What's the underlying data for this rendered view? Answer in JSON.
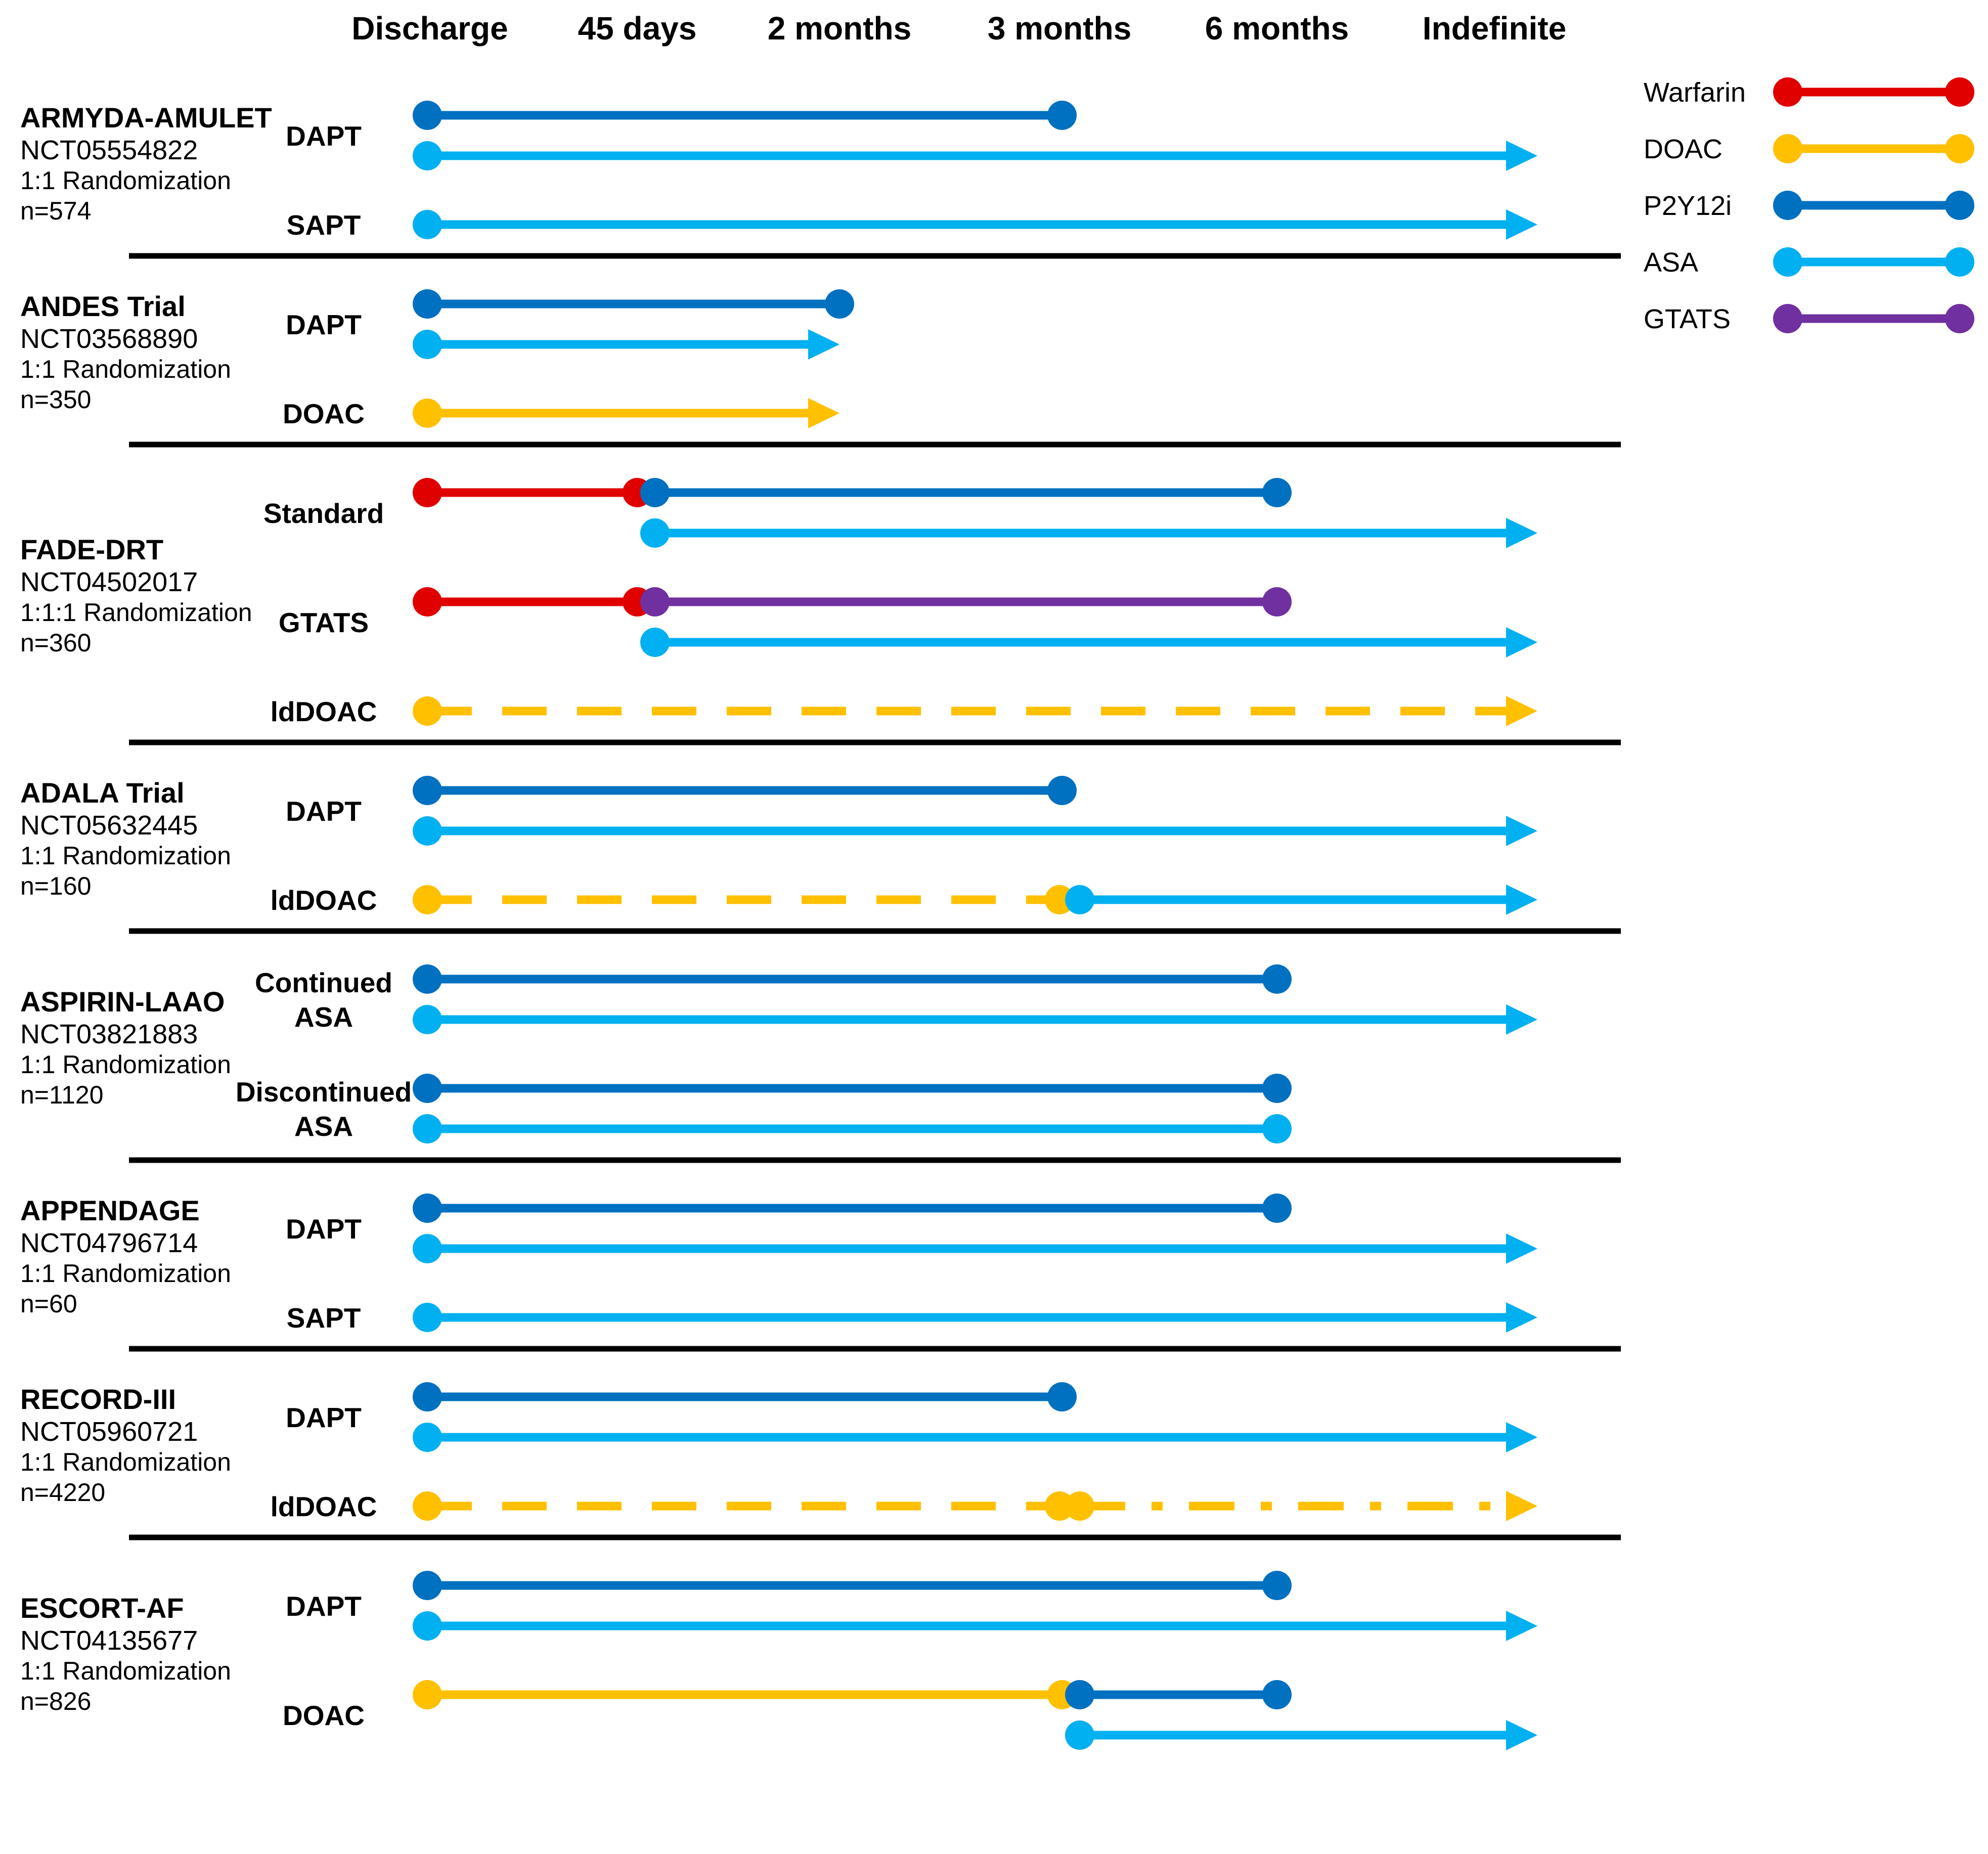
{
  "colors": {
    "warfarin": "#e00000",
    "doac": "#ffc000",
    "p2y12i": "#0070c0",
    "asa": "#00b0f0",
    "gtats": "#7030a0",
    "divider": "#000000"
  },
  "timeline": {
    "points": [
      {
        "key": "discharge",
        "label": "Discharge"
      },
      {
        "key": "d45",
        "label": "45 days"
      },
      {
        "key": "m2",
        "label": "2 months"
      },
      {
        "key": "m3",
        "label": "3 months"
      },
      {
        "key": "m6",
        "label": "6 months"
      },
      {
        "key": "indef",
        "label": "Indefinite"
      }
    ]
  },
  "legend": [
    {
      "key": "warfarin",
      "label": "Warfarin"
    },
    {
      "key": "doac",
      "label": "DOAC"
    },
    {
      "key": "p2y12i",
      "label": "P2Y12i"
    },
    {
      "key": "asa",
      "label": "ASA"
    },
    {
      "key": "gtats",
      "label": "GTATS"
    }
  ],
  "trials": [
    {
      "name": "ARMYDA-AMULET",
      "nct": "NCT05554822",
      "randomization": "1:1 Randomization",
      "n": "n=574",
      "arms": [
        {
          "label": [
            "DAPT"
          ],
          "lines": [
            {
              "drug": "p2y12i",
              "from": "discharge",
              "to": "m3",
              "end": "dot"
            },
            {
              "drug": "asa",
              "from": "discharge",
              "to": "indef",
              "end": "arrow"
            }
          ]
        },
        {
          "label": [
            "SAPT"
          ],
          "lines": [
            {
              "drug": "asa",
              "from": "discharge",
              "to": "indef",
              "end": "arrow"
            }
          ]
        }
      ]
    },
    {
      "name": "ANDES Trial",
      "nct": "NCT03568890",
      "randomization": "1:1 Randomization",
      "n": "n=350",
      "arms": [
        {
          "label": [
            "DAPT"
          ],
          "lines": [
            {
              "drug": "p2y12i",
              "from": "discharge",
              "to": "m2",
              "end": "dot"
            },
            {
              "drug": "asa",
              "from": "discharge",
              "to": "m2",
              "end": "arrow"
            }
          ]
        },
        {
          "label": [
            "DOAC"
          ],
          "lines": [
            {
              "drug": "doac",
              "from": "discharge",
              "to": "m2",
              "end": "arrow"
            }
          ]
        }
      ]
    },
    {
      "name": "FADE-DRT",
      "nct": "NCT04502017",
      "randomization": "1:1:1 Randomization",
      "n": "n=360",
      "arms": [
        {
          "label": [
            "Standard"
          ],
          "lines": [
            {
              "drug": "warfarin",
              "from": "discharge",
              "to": "d45",
              "end": "dot"
            },
            {
              "drug": "p2y12i",
              "from": "d45",
              "to": "m6",
              "end": "dot",
              "row": 0
            },
            {
              "drug": "asa",
              "from": "d45",
              "to": "indef",
              "end": "arrow",
              "row": 1,
              "startDot": true
            }
          ]
        },
        {
          "label": [
            "GTATS"
          ],
          "lines": [
            {
              "drug": "warfarin",
              "from": "discharge",
              "to": "d45",
              "end": "dot"
            },
            {
              "drug": "gtats",
              "from": "d45",
              "to": "m6",
              "end": "dot",
              "row": 0
            },
            {
              "drug": "asa",
              "from": "d45",
              "to": "indef",
              "end": "arrow",
              "row": 1
            }
          ]
        },
        {
          "label": [
            "ldDOAC"
          ],
          "lines": [
            {
              "drug": "doac",
              "from": "discharge",
              "to": "indef",
              "end": "arrow",
              "style": "dash"
            }
          ]
        }
      ]
    },
    {
      "name": "ADALA Trial",
      "nct": "NCT05632445",
      "randomization": "1:1 Randomization",
      "n": "n=160",
      "arms": [
        {
          "label": [
            "DAPT"
          ],
          "lines": [
            {
              "drug": "p2y12i",
              "from": "discharge",
              "to": "m3",
              "end": "dot"
            },
            {
              "drug": "asa",
              "from": "discharge",
              "to": "indef",
              "end": "arrow"
            }
          ]
        },
        {
          "label": [
            "ldDOAC"
          ],
          "lines": [
            {
              "drug": "doac",
              "from": "discharge",
              "to": "m3",
              "end": "dot",
              "style": "dash",
              "row": 0
            },
            {
              "drug": "asa",
              "from": "m3",
              "to": "indef",
              "end": "arrow",
              "row": 0
            }
          ]
        }
      ]
    },
    {
      "name": "ASPIRIN-LAAO",
      "nct": "NCT03821883",
      "randomization": "1:1 Randomization",
      "n": "n=1120",
      "arms": [
        {
          "label": [
            "Continued",
            "ASA"
          ],
          "lines": [
            {
              "drug": "p2y12i",
              "from": "discharge",
              "to": "m6",
              "end": "dot"
            },
            {
              "drug": "asa",
              "from": "discharge",
              "to": "indef",
              "end": "arrow"
            }
          ]
        },
        {
          "label": [
            "Discontinued",
            "ASA"
          ],
          "lines": [
            {
              "drug": "p2y12i",
              "from": "discharge",
              "to": "m6",
              "end": "dot"
            },
            {
              "drug": "asa",
              "from": "discharge",
              "to": "m6",
              "end": "dot"
            }
          ]
        }
      ]
    },
    {
      "name": "APPENDAGE",
      "nct": "NCT04796714",
      "randomization": "1:1 Randomization",
      "n": "n=60",
      "arms": [
        {
          "label": [
            "DAPT"
          ],
          "lines": [
            {
              "drug": "p2y12i",
              "from": "discharge",
              "to": "m6",
              "end": "dot"
            },
            {
              "drug": "asa",
              "from": "discharge",
              "to": "indef",
              "end": "arrow"
            }
          ]
        },
        {
          "label": [
            "SAPT"
          ],
          "lines": [
            {
              "drug": "asa",
              "from": "discharge",
              "to": "indef",
              "end": "arrow"
            }
          ]
        }
      ]
    },
    {
      "name": "RECORD-III",
      "nct": "NCT05960721",
      "randomization": "1:1 Randomization",
      "n": "n=4220",
      "arms": [
        {
          "label": [
            "DAPT"
          ],
          "lines": [
            {
              "drug": "p2y12i",
              "from": "discharge",
              "to": "m3",
              "end": "dot"
            },
            {
              "drug": "asa",
              "from": "discharge",
              "to": "indef",
              "end": "arrow"
            }
          ]
        },
        {
          "label": [
            "ldDOAC"
          ],
          "lines": [
            {
              "drug": "doac",
              "from": "discharge",
              "to": "m3",
              "end": "dot",
              "style": "dash",
              "row": 0
            },
            {
              "drug": "doac",
              "from": "m3",
              "to": "indef",
              "end": "arrow",
              "style": "dashdot",
              "row": 0
            }
          ]
        }
      ]
    },
    {
      "name": "ESCORT-AF",
      "nct": "NCT04135677",
      "randomization": "1:1 Randomization",
      "n": "n=826",
      "arms": [
        {
          "label": [
            "DAPT"
          ],
          "lines": [
            {
              "drug": "p2y12i",
              "from": "discharge",
              "to": "m6",
              "end": "dot"
            },
            {
              "drug": "asa",
              "from": "discharge",
              "to": "indef",
              "end": "arrow"
            }
          ]
        },
        {
          "label": [
            "DOAC"
          ],
          "lines": [
            {
              "drug": "doac",
              "from": "discharge",
              "to": "m3",
              "end": "dot",
              "row": 0
            },
            {
              "drug": "p2y12i",
              "from": "m3",
              "to": "m6",
              "end": "dot",
              "row": 0
            },
            {
              "drug": "asa",
              "from": "m3",
              "to": "indef",
              "end": "arrow",
              "row": 1
            }
          ]
        }
      ]
    }
  ]
}
